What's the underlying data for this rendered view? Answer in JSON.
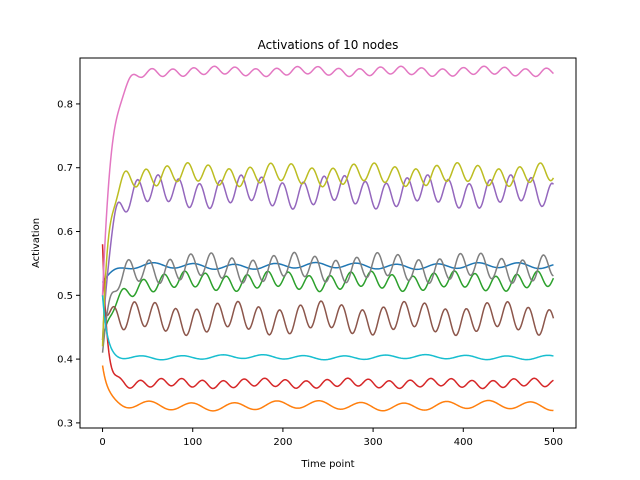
{
  "chart_data": {
    "type": "line",
    "title": "Activations of 10 nodes",
    "xlabel": "Time point",
    "ylabel": "Activation",
    "xlim": [
      -25,
      525
    ],
    "ylim": [
      0.292,
      0.872
    ],
    "xticks": [
      0,
      100,
      200,
      300,
      400,
      500
    ],
    "yticks": [
      0.3,
      0.4,
      0.5,
      0.6,
      0.7,
      0.8
    ],
    "grid": false,
    "legend": "none",
    "series": [
      {
        "color": "#1f77b4",
        "start": 0.52,
        "base": 0.546,
        "amp": 0.004,
        "period": 45,
        "tau": 12,
        "x": [
          0,
          50,
          100,
          150,
          200,
          250,
          300,
          350,
          400,
          450,
          500
        ],
        "values": [
          0.52,
          0.548,
          0.545,
          0.549,
          0.545,
          0.546,
          0.543,
          0.546,
          0.545,
          0.55,
          0.54
        ]
      },
      {
        "color": "#ff7f0e",
        "start": 0.39,
        "base": 0.327,
        "amp": 0.006,
        "period": 47,
        "tau": 6,
        "x": [
          0,
          50,
          100,
          150,
          200,
          250,
          300,
          350,
          400,
          450,
          500
        ],
        "values": [
          0.39,
          0.332,
          0.33,
          0.328,
          0.327,
          0.326,
          0.33,
          0.325,
          0.33,
          0.327,
          0.32
        ]
      },
      {
        "color": "#2ca02c",
        "start": 0.43,
        "base": 0.522,
        "amp": 0.012,
        "period": 23,
        "tau": 15,
        "x": [
          0,
          50,
          100,
          150,
          200,
          250,
          300,
          350,
          400,
          450,
          500
        ],
        "values": [
          0.43,
          0.52,
          0.53,
          0.52,
          0.53,
          0.52,
          0.53,
          0.52,
          0.53,
          0.52,
          0.51
        ]
      },
      {
        "color": "#d62728",
        "start": 0.58,
        "base": 0.362,
        "amp": 0.006,
        "period": 23,
        "tau": 5,
        "x": [
          0,
          50,
          100,
          150,
          200,
          250,
          300,
          350,
          400,
          450,
          500
        ],
        "values": [
          0.58,
          0.362,
          0.365,
          0.36,
          0.365,
          0.36,
          0.365,
          0.36,
          0.365,
          0.36,
          0.358
        ]
      },
      {
        "color": "#9467bd",
        "start": 0.43,
        "base": 0.662,
        "amp": 0.02,
        "period": 23,
        "tau": 8,
        "x": [
          0,
          50,
          100,
          150,
          200,
          250,
          300,
          350,
          400,
          450,
          500
        ],
        "values": [
          0.43,
          0.66,
          0.68,
          0.66,
          0.68,
          0.66,
          0.68,
          0.66,
          0.68,
          0.66,
          0.665
        ]
      },
      {
        "color": "#8c564b",
        "start": 0.5,
        "base": 0.464,
        "amp": 0.02,
        "period": 23,
        "tau": 5,
        "x": [
          0,
          50,
          100,
          150,
          200,
          250,
          300,
          350,
          400,
          450,
          500
        ],
        "values": [
          0.5,
          0.46,
          0.48,
          0.45,
          0.48,
          0.45,
          0.48,
          0.45,
          0.48,
          0.46,
          0.445
        ]
      },
      {
        "color": "#e377c2",
        "start": 0.5,
        "base": 0.851,
        "amp": 0.006,
        "period": 23,
        "tau": 10,
        "x": [
          0,
          50,
          100,
          150,
          200,
          250,
          300,
          350,
          400,
          450,
          500
        ],
        "values": [
          0.5,
          0.85,
          0.852,
          0.848,
          0.852,
          0.848,
          0.855,
          0.848,
          0.852,
          0.848,
          0.85
        ]
      },
      {
        "color": "#7f7f7f",
        "start": 0.41,
        "base": 0.543,
        "amp": 0.018,
        "period": 23,
        "tau": 10,
        "x": [
          0,
          50,
          100,
          150,
          200,
          250,
          300,
          350,
          400,
          450,
          500
        ],
        "values": [
          0.41,
          0.54,
          0.56,
          0.53,
          0.56,
          0.53,
          0.565,
          0.53,
          0.56,
          0.53,
          0.54
        ]
      },
      {
        "color": "#bcbd22",
        "start": 0.42,
        "base": 0.689,
        "amp": 0.014,
        "period": 23,
        "tau": 7,
        "x": [
          0,
          50,
          100,
          150,
          200,
          250,
          300,
          350,
          400,
          450,
          500
        ],
        "values": [
          0.42,
          0.69,
          0.7,
          0.68,
          0.7,
          0.68,
          0.705,
          0.68,
          0.7,
          0.68,
          0.67
        ]
      },
      {
        "color": "#17becf",
        "start": 0.5,
        "base": 0.403,
        "amp": 0.003,
        "period": 45,
        "tau": 5,
        "x": [
          0,
          50,
          100,
          150,
          200,
          250,
          300,
          350,
          400,
          450,
          500
        ],
        "values": [
          0.5,
          0.405,
          0.403,
          0.402,
          0.403,
          0.402,
          0.404,
          0.403,
          0.402,
          0.41,
          0.393
        ]
      }
    ]
  }
}
